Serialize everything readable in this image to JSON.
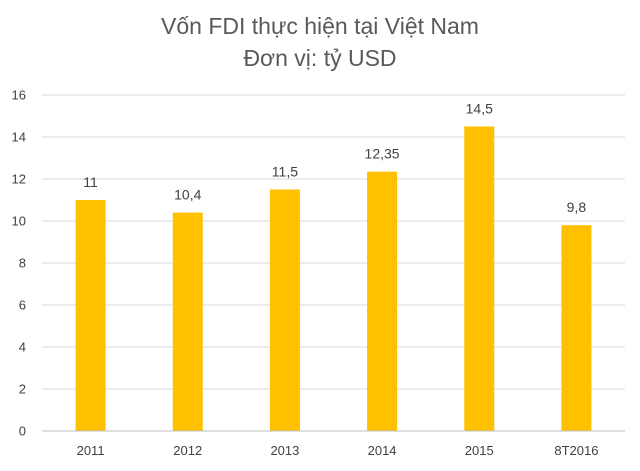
{
  "chart_data": {
    "type": "bar",
    "title": "Vốn FDI thực hiện tại Việt Nam",
    "subtitle": "Đơn vị: tỷ USD",
    "categories": [
      "2011",
      "2012",
      "2013",
      "2014",
      "2015",
      "8T2016"
    ],
    "values": [
      11,
      10.4,
      11.5,
      12.35,
      14.5,
      9.8
    ],
    "value_labels": [
      "11",
      "10,4",
      "11,5",
      "12,35",
      "14,5",
      "9,8"
    ],
    "yticks": [
      "0",
      "2",
      "4",
      "6",
      "8",
      "10",
      "12",
      "14",
      "16"
    ],
    "ylim": [
      0,
      16
    ],
    "grid": true,
    "legend": "none",
    "colors": {
      "bar": "#FFC000",
      "grid": "#D9D9D9",
      "axis": "#BFBFBF",
      "text": "#404040",
      "title": "#595959"
    }
  }
}
